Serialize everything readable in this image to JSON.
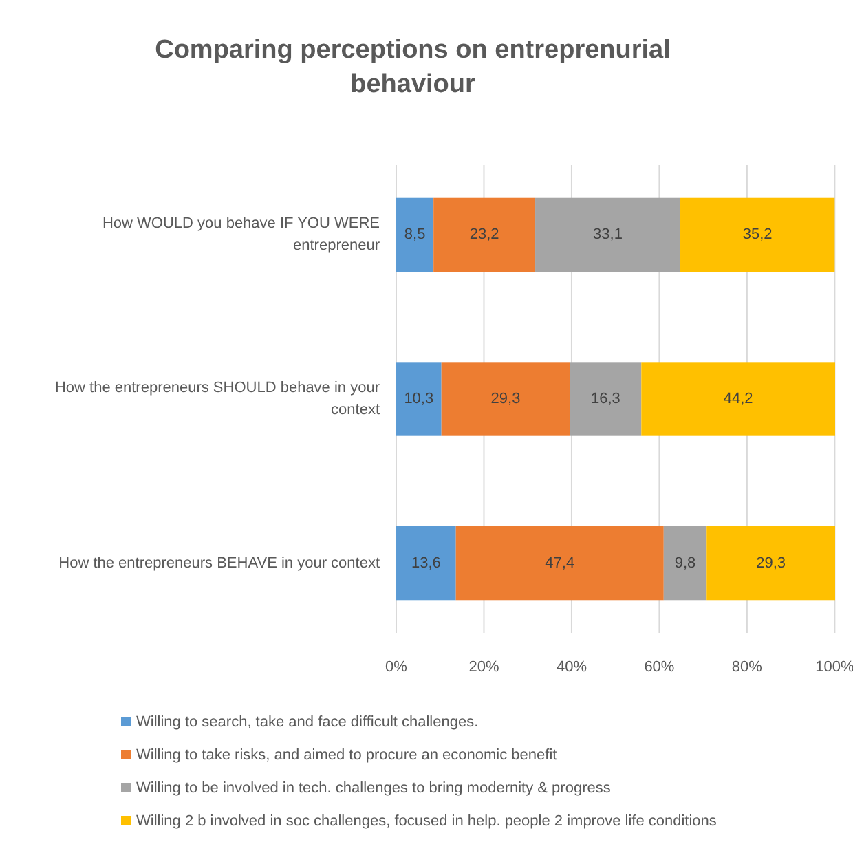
{
  "chart_data": {
    "type": "bar",
    "orientation": "horizontal",
    "stacked": true,
    "title": "Comparing perceptions on entreprenurial behaviour",
    "categories": [
      "How WOULD you behave IF YOU WERE entrepreneur",
      "How the entrepreneurs SHOULD behave in your context",
      "How the entrepreneurs BEHAVE in your context"
    ],
    "series": [
      {
        "name": "Willing to search, take and face difficult challenges.",
        "color": "#5b9bd5",
        "values": [
          8.5,
          10.3,
          13.6
        ],
        "value_labels": [
          "8,5",
          "10,3",
          "13,6"
        ]
      },
      {
        "name": "Willing to take risks, and aimed to procure an economic benefit",
        "color": "#ed7d31",
        "values": [
          23.2,
          29.3,
          47.4
        ],
        "value_labels": [
          "23,2",
          "29,3",
          "47,4"
        ]
      },
      {
        "name": "Willing to be involved in tech. challenges to bring modernity & progress",
        "color": "#a5a5a5",
        "values": [
          33.1,
          16.3,
          9.8
        ],
        "value_labels": [
          "33,1",
          "16,3",
          "9,8"
        ]
      },
      {
        "name": "Willing 2 b involved in soc challenges, focused in help. people  2 improve life conditions",
        "color": "#ffc000",
        "values": [
          35.2,
          44.2,
          29.3
        ],
        "value_labels": [
          "35,2",
          "44,2",
          "29,3"
        ]
      }
    ],
    "xlim": [
      0,
      100.1
    ],
    "xticks": [
      {
        "value": 0,
        "label": "0%"
      },
      {
        "value": 20,
        "label": "20%"
      },
      {
        "value": 40,
        "label": "40%"
      },
      {
        "value": 60,
        "label": "60%"
      },
      {
        "value": 80,
        "label": "80%"
      },
      {
        "value": 100,
        "label": "100%"
      }
    ],
    "grid": "x",
    "legend": "bottom"
  }
}
